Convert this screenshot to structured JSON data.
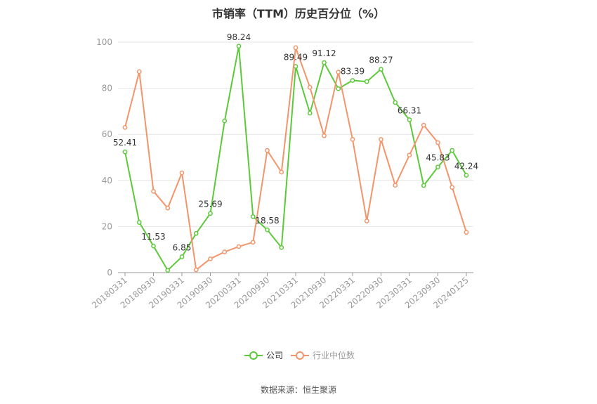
{
  "title": "市销率（TTM）历史百分位（%）",
  "source": "数据来源：恒生聚源",
  "colors": {
    "company": "#5cc93b",
    "industry": "#f3956b",
    "grid": "#e6e6e6",
    "axis": "#999999",
    "tick_text": "#999999",
    "label_text": "#333333"
  },
  "chart_data": {
    "type": "line",
    "title": "市销率（TTM）历史百分位（%）",
    "xlabel": "",
    "ylabel": "",
    "ylim": [
      0,
      100
    ],
    "yticks": [
      0,
      20,
      40,
      60,
      80,
      100
    ],
    "grid": true,
    "legend_position": "bottom-center",
    "x_tick_labels": [
      "20180331",
      "20180930",
      "20190331",
      "20190930",
      "20200331",
      "20200930",
      "20210331",
      "20210930",
      "20220331",
      "20220930",
      "20230331",
      "20230930",
      "20240125"
    ],
    "x_tick_indices": [
      0,
      2,
      4,
      6,
      8,
      10,
      12,
      14,
      16,
      18,
      20,
      22,
      24
    ],
    "point_count": 25,
    "series": [
      {
        "name": "公司",
        "color": "#5cc93b",
        "values": [
          52.41,
          21.8,
          11.53,
          1.0,
          6.85,
          17.0,
          25.69,
          65.8,
          98.24,
          24.3,
          18.58,
          10.9,
          89.49,
          69.2,
          91.12,
          79.8,
          83.39,
          82.9,
          88.27,
          73.8,
          66.31,
          37.8,
          45.83,
          53.0,
          42.24
        ],
        "labels": {
          "0": "52.41",
          "2": "11.53",
          "4": "6.85",
          "6": "25.69",
          "8": "98.24",
          "10": "18.58",
          "12": "89.49",
          "14": "91.12",
          "16": "83.39",
          "18": "88.27",
          "20": "66.31",
          "22": "45.83",
          "24": "42.24"
        }
      },
      {
        "name": "行业中位数",
        "color": "#f3956b",
        "values": [
          63.0,
          87.2,
          35.3,
          28.0,
          43.3,
          1.2,
          6.0,
          9.0,
          11.3,
          13.2,
          53.0,
          43.6,
          97.6,
          80.4,
          59.4,
          87.0,
          57.8,
          22.4,
          57.8,
          37.9,
          51.0,
          64.0,
          56.4,
          37.0,
          17.5
        ]
      }
    ]
  }
}
